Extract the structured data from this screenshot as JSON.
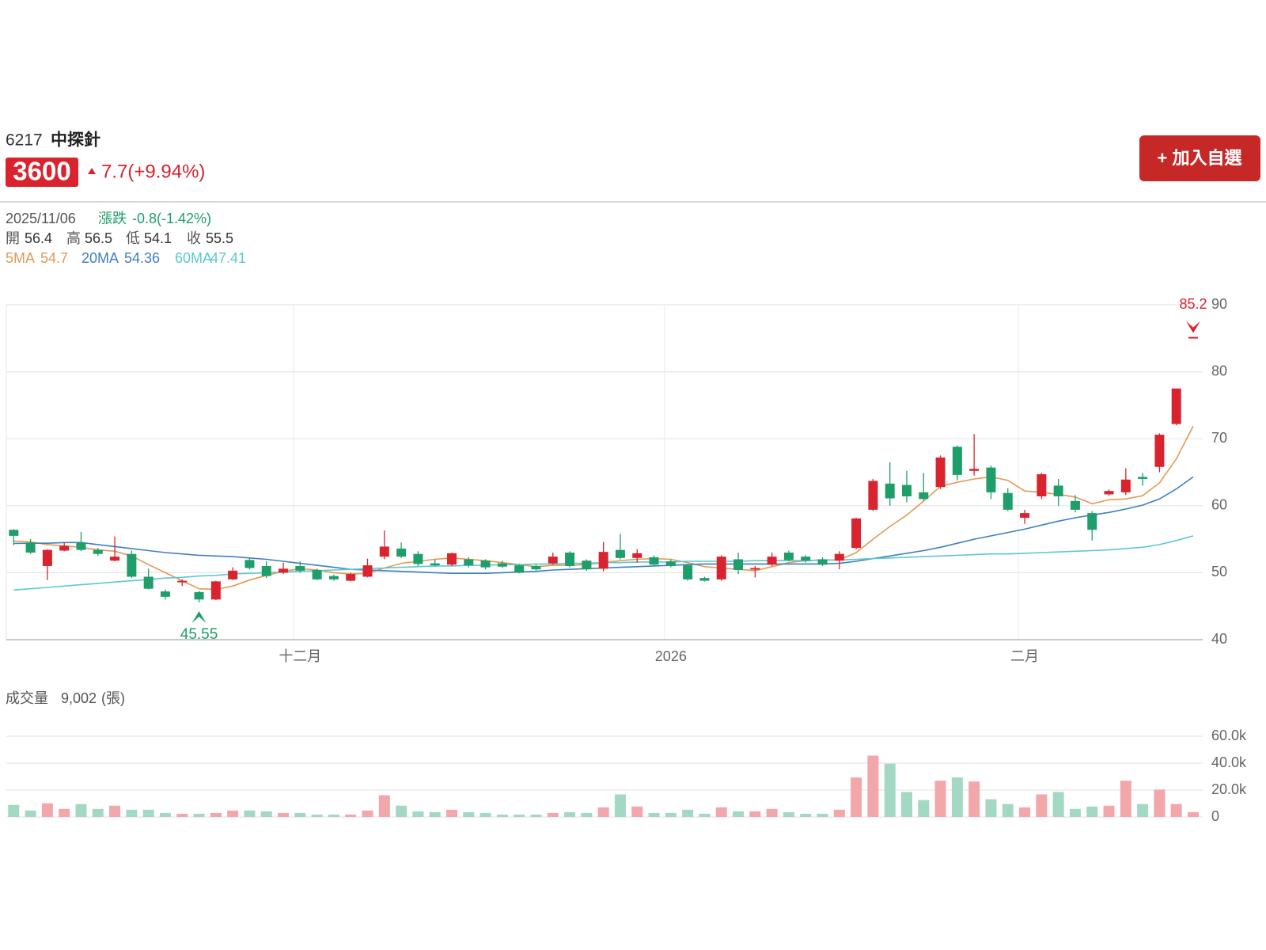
{
  "header": {
    "code": "6217",
    "name": "中探針",
    "change": "7.7(+9.94%)",
    "button": "+ 加入自選"
  },
  "info": {
    "date": "2025/11/06",
    "change_label": "漲跌",
    "change": "-0.8(-1.42%)",
    "open_label": "開",
    "high_label": "高",
    "low_label": "低",
    "close_label": "收"
  },
  "chart_data": [
    {
      "type": "candlestick",
      "categories": [
        null,
        null,
        null,
        null,
        null,
        null,
        null,
        null,
        null,
        null,
        null,
        null,
        null,
        null,
        null,
        null,
        null,
        "十二月",
        null,
        null,
        null,
        null,
        null,
        null,
        null,
        null,
        null,
        null,
        null,
        null,
        null,
        null,
        null,
        null,
        null,
        null,
        null,
        null,
        null,
        "2026",
        null,
        null,
        null,
        null,
        null,
        null,
        null,
        null,
        null,
        null,
        null,
        null,
        null,
        null,
        null,
        null,
        null,
        null,
        null,
        null,
        "二月",
        null,
        null,
        null,
        null,
        null,
        null,
        null,
        null,
        null,
        null
      ],
      "open": [
        56.4,
        54.5,
        51.0,
        53.3,
        54.5,
        53.4,
        51.8,
        52.8,
        49.4,
        47.2,
        48.6,
        47.1,
        46.0,
        49.0,
        51.9,
        51.0,
        50.0,
        51.0,
        50.4,
        49.5,
        48.8,
        49.4,
        52.4,
        53.6,
        52.8,
        51.4,
        51.2,
        52.0,
        51.8,
        51.4,
        51.1,
        51.0,
        51.4,
        53.0,
        51.8,
        50.6,
        53.4,
        52.2,
        52.3,
        51.7,
        51.1,
        49.2,
        49.0,
        52.0,
        50.5,
        51.2,
        53.0,
        52.4,
        52.0,
        51.8,
        53.7,
        59.4,
        63.3,
        63.1,
        62.0,
        62.8,
        68.8,
        65.2,
        65.7,
        61.9,
        58.2,
        61.4,
        63.0,
        60.7,
        58.9,
        61.7,
        62.0,
        64.3,
        65.8,
        72.2,
        85.2
      ],
      "high": [
        56.5,
        55.0,
        53.5,
        54.5,
        56.1,
        53.7,
        55.4,
        53.3,
        50.6,
        47.5,
        49.0,
        47.3,
        48.8,
        50.8,
        52.2,
        51.7,
        51.5,
        51.7,
        50.6,
        49.7,
        50.0,
        52.1,
        56.3,
        54.5,
        53.2,
        52.0,
        53.0,
        52.3,
        52.0,
        51.8,
        51.3,
        51.2,
        53.0,
        53.2,
        52.0,
        54.6,
        55.8,
        53.5,
        52.6,
        52.0,
        51.3,
        49.4,
        52.6,
        53.0,
        51.0,
        53.0,
        53.3,
        52.6,
        52.3,
        53.2,
        58.2,
        64.0,
        66.5,
        65.2,
        64.9,
        67.5,
        69.0,
        70.7,
        66.0,
        62.6,
        59.4,
        64.9,
        64.0,
        61.6,
        59.2,
        62.4,
        65.6,
        64.9,
        70.8,
        77.5,
        85.2
      ],
      "low": [
        54.1,
        52.8,
        48.9,
        53.2,
        53.2,
        52.5,
        51.7,
        49.2,
        47.5,
        46.0,
        48.0,
        45.55,
        45.9,
        48.9,
        50.5,
        49.2,
        49.8,
        50.0,
        48.9,
        48.8,
        48.7,
        49.3,
        52.0,
        52.2,
        51.0,
        50.9,
        51.0,
        50.8,
        50.5,
        50.7,
        49.9,
        50.3,
        51.2,
        50.8,
        50.3,
        50.2,
        52.0,
        51.5,
        51.0,
        50.8,
        48.8,
        48.7,
        48.8,
        49.8,
        49.3,
        51.0,
        51.7,
        51.5,
        51.0,
        50.5,
        53.5,
        59.2,
        60.0,
        60.5,
        60.8,
        62.5,
        63.8,
        64.5,
        61.0,
        59.2,
        57.3,
        61.0,
        60.0,
        59.0,
        54.8,
        61.5,
        61.6,
        63.0,
        65.0,
        72.0,
        85.2
      ],
      "close": [
        55.5,
        53.0,
        53.4,
        54.0,
        53.4,
        52.8,
        52.4,
        49.4,
        47.6,
        46.4,
        48.8,
        46.0,
        48.7,
        50.3,
        50.7,
        49.5,
        50.6,
        50.3,
        49.0,
        49.0,
        49.8,
        51.1,
        53.9,
        52.4,
        51.3,
        51.1,
        52.9,
        51.1,
        50.8,
        50.9,
        50.0,
        50.5,
        52.4,
        51.0,
        50.5,
        53.1,
        52.2,
        52.9,
        51.2,
        51.0,
        49.0,
        48.8,
        52.4,
        50.4,
        50.7,
        52.4,
        51.9,
        51.8,
        51.2,
        52.8,
        58.1,
        63.7,
        61.1,
        61.4,
        61.0,
        67.2,
        64.6,
        65.5,
        62.0,
        59.4,
        58.9,
        64.7,
        61.4,
        59.4,
        56.4,
        62.2,
        63.9,
        64.0,
        70.6,
        77.5,
        85.2
      ],
      "up_color": "#d9232e",
      "down_color": "#1e9e6a",
      "series": [
        {
          "name": "5MA",
          "color": "#e39a55",
          "values": [
            54.7,
            54.6,
            54.2,
            54.0,
            53.8,
            53.4,
            53.2,
            52.5,
            51.2,
            50.0,
            48.8,
            47.6,
            47.5,
            48.0,
            48.9,
            49.6,
            50.2,
            50.6,
            50.4,
            50.0,
            49.8,
            49.9,
            50.7,
            51.4,
            51.7,
            52.0,
            52.2,
            52.0,
            51.8,
            51.5,
            51.2,
            50.9,
            51.1,
            51.1,
            51.2,
            51.5,
            51.8,
            52.0,
            52.1,
            52.0,
            51.5,
            50.9,
            50.7,
            50.5,
            50.3,
            50.9,
            51.5,
            51.8,
            51.9,
            51.9,
            53.0,
            55.0,
            56.9,
            58.6,
            60.7,
            62.9,
            63.5,
            64.0,
            64.3,
            63.8,
            62.2,
            62.0,
            61.7,
            61.3,
            60.3,
            60.9,
            61.0,
            61.5,
            63.4,
            67.0,
            71.9
          ]
        },
        {
          "name": "20MA",
          "color": "#3f7fbf",
          "values": [
            54.36,
            54.4,
            54.4,
            54.5,
            54.5,
            54.2,
            53.9,
            53.6,
            53.3,
            53.0,
            52.8,
            52.6,
            52.5,
            52.4,
            52.2,
            52.0,
            51.7,
            51.4,
            51.1,
            50.8,
            50.5,
            50.4,
            50.3,
            50.2,
            50.1,
            50.0,
            49.9,
            49.9,
            49.9,
            50.0,
            50.1,
            50.2,
            50.4,
            50.5,
            50.6,
            50.7,
            50.8,
            50.9,
            51.0,
            51.1,
            51.2,
            51.3,
            51.3,
            51.3,
            51.3,
            51.3,
            51.3,
            51.3,
            51.3,
            51.4,
            51.7,
            52.1,
            52.5,
            52.9,
            53.3,
            53.8,
            54.4,
            55.0,
            55.5,
            56.0,
            56.5,
            57.1,
            57.7,
            58.2,
            58.6,
            59.0,
            59.5,
            60.1,
            61.0,
            62.5,
            64.3
          ]
        },
        {
          "name": "60MA",
          "color": "#5cc8d0",
          "values": [
            47.41,
            47.6,
            47.8,
            48.0,
            48.2,
            48.4,
            48.6,
            48.8,
            49.0,
            49.2,
            49.3,
            49.5,
            49.6,
            49.8,
            49.9,
            50.0,
            50.1,
            50.2,
            50.3,
            50.4,
            50.5,
            50.6,
            50.7,
            50.8,
            50.9,
            51.0,
            51.0,
            51.1,
            51.1,
            51.2,
            51.2,
            51.3,
            51.3,
            51.4,
            51.4,
            51.5,
            51.5,
            51.6,
            51.6,
            51.6,
            51.7,
            51.7,
            51.7,
            51.7,
            51.8,
            51.8,
            51.8,
            51.8,
            51.9,
            51.9,
            52.0,
            52.1,
            52.2,
            52.3,
            52.4,
            52.5,
            52.6,
            52.7,
            52.8,
            52.8,
            52.9,
            53.0,
            53.1,
            53.2,
            53.3,
            53.4,
            53.6,
            53.8,
            54.2,
            54.8,
            55.5
          ]
        }
      ],
      "ylim": [
        40,
        90
      ],
      "yticks": [
        40,
        50,
        60,
        70,
        80,
        90
      ],
      "grid": true
    },
    {
      "type": "bar",
      "title": "成交量",
      "unit": "(張)",
      "values": [
        9002,
        4800,
        10200,
        6000,
        9600,
        6000,
        8400,
        5400,
        5400,
        3000,
        2400,
        2400,
        3000,
        4800,
        4800,
        4200,
        3000,
        3000,
        1800,
        1800,
        1800,
        4800,
        16200,
        8400,
        4200,
        3600,
        5400,
        3600,
        3000,
        1800,
        1800,
        1800,
        3000,
        3600,
        3000,
        7200,
        16800,
        7800,
        3000,
        3000,
        5400,
        2400,
        7200,
        4200,
        4200,
        6000,
        3600,
        2400,
        2400,
        5400,
        29400,
        45600,
        39600,
        18600,
        12600,
        27000,
        29400,
        26400,
        13200,
        9600,
        7200,
        16800,
        18600,
        6000,
        7800,
        8400,
        27000,
        9600,
        20400,
        9600,
        3600
      ],
      "value_labels": [
        "9,002",
        null,
        null,
        null,
        null,
        null,
        null,
        null,
        null,
        null,
        null,
        null,
        null,
        null,
        null,
        null,
        null,
        null,
        null,
        null,
        null,
        null,
        null,
        null,
        null,
        null,
        null,
        null,
        null,
        null,
        null,
        null,
        null,
        null,
        null,
        null,
        null,
        null,
        null,
        null,
        null,
        null,
        null,
        null,
        null,
        null,
        null,
        null,
        null,
        null,
        null,
        null,
        null,
        null,
        null,
        null,
        null,
        null,
        null,
        null,
        null,
        null,
        null,
        null,
        null,
        null,
        null,
        null,
        null,
        null,
        null
      ],
      "up_color": "#f2a7ab",
      "down_color": "#a3d9c2",
      "ylim": [
        0,
        60000
      ],
      "yticks": [
        0,
        {
          "value": 20000,
          "label": "20.0k"
        },
        {
          "value": 40000,
          "label": "40.0k"
        },
        {
          "value": 60000,
          "label": "60.0k"
        }
      ],
      "grid": true
    }
  ]
}
